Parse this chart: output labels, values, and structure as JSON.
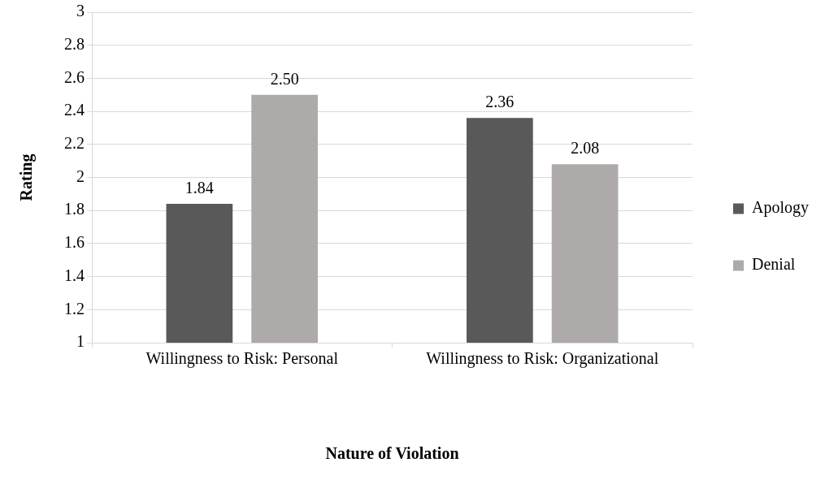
{
  "chart_data": {
    "type": "bar",
    "xlabel": "Nature of Violation",
    "ylabel": "Rating",
    "categories": [
      "Willingness to Risk: Personal",
      "Willingness to Risk: Organizational"
    ],
    "series": [
      {
        "name": "Apology",
        "color": "#595959",
        "values": [
          1.84,
          2.36
        ],
        "value_labels": [
          "1.84",
          "2.36"
        ]
      },
      {
        "name": "Denial",
        "color": "#aeaaaa",
        "values": [
          2.5,
          2.08
        ],
        "value_labels": [
          "2.50",
          "2.08"
        ]
      }
    ],
    "ylim": [
      1,
      3
    ],
    "yticks": [
      1,
      1.2,
      1.4,
      1.6,
      1.8,
      2,
      2.2,
      2.4,
      2.6,
      2.8,
      3
    ],
    "grid": "y",
    "legend": "right"
  }
}
